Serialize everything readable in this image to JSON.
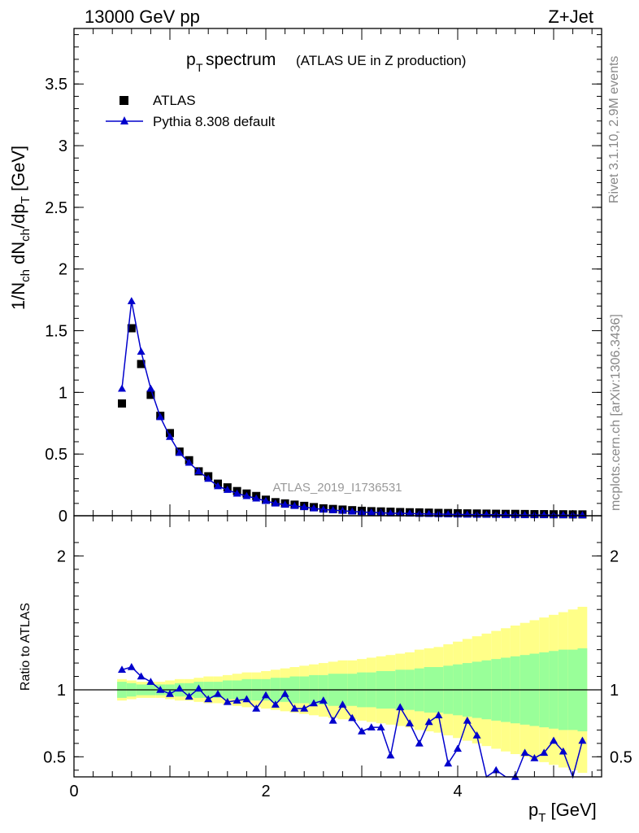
{
  "header": {
    "left": "13000 GeV pp",
    "right": "Z+Jet"
  },
  "title": {
    "main": "p",
    "main_sub": "T",
    "main_rest": " spectrum",
    "detail": "(ATLAS UE in Z production)"
  },
  "side_labels": {
    "rivet": "Rivet 3.1.10,  2.9M events",
    "mcplots": "mcplots.cern.ch [arXiv:1306.3436]"
  },
  "watermark": "ATLAS_2019_I1736531",
  "legend": {
    "data_label": "ATLAS",
    "mc_label": "Pythia 8.308 default"
  },
  "colors": {
    "data": "#000000",
    "mc": "#0000cc",
    "band_inner": "#99ff99",
    "band_outer": "#ffff88"
  },
  "chart_data": [
    {
      "type": "scatter",
      "panel": "main",
      "ylabel": "1/N_ch dN_ch/dp_T [GeV]",
      "ylim": [
        0,
        3.95
      ],
      "xlim": [
        0,
        5.5
      ],
      "yticks": [
        "0",
        "0.5",
        "1",
        "1.5",
        "2",
        "2.5",
        "3",
        "3.5"
      ],
      "yticks_values": [
        0,
        0.5,
        1,
        1.5,
        2,
        2.5,
        3,
        3.5
      ],
      "x": [
        0.5,
        0.6,
        0.7,
        0.8,
        0.9,
        1.0,
        1.1,
        1.2,
        1.3,
        1.4,
        1.5,
        1.6,
        1.7,
        1.8,
        1.9,
        2.0,
        2.1,
        2.2,
        2.3,
        2.4,
        2.5,
        2.6,
        2.7,
        2.8,
        2.9,
        3.0,
        3.1,
        3.2,
        3.3,
        3.4,
        3.5,
        3.6,
        3.7,
        3.8,
        3.9,
        4.0,
        4.1,
        4.2,
        4.3,
        4.4,
        4.5,
        4.6,
        4.7,
        4.8,
        4.9,
        5.0,
        5.1,
        5.2,
        5.3
      ],
      "series": [
        {
          "name": "ATLAS",
          "values": [
            0.91,
            1.52,
            1.23,
            0.98,
            0.81,
            0.67,
            0.52,
            0.45,
            0.36,
            0.32,
            0.26,
            0.23,
            0.2,
            0.18,
            0.16,
            0.13,
            0.11,
            0.1,
            0.09,
            0.08,
            0.07,
            0.06,
            0.055,
            0.05,
            0.045,
            0.04,
            0.037,
            0.035,
            0.033,
            0.03,
            0.028,
            0.027,
            0.025,
            0.023,
            0.022,
            0.02,
            0.019,
            0.018,
            0.017,
            0.016,
            0.015,
            0.015,
            0.014,
            0.013,
            0.013,
            0.012,
            0.012,
            0.011,
            0.011
          ]
        },
        {
          "name": "Pythia 8.308 default",
          "values": [
            1.03,
            1.74,
            1.33,
            1.03,
            0.8,
            0.64,
            0.51,
            0.43,
            0.36,
            0.3,
            0.24,
            0.21,
            0.18,
            0.16,
            0.14,
            0.12,
            0.1,
            0.09,
            0.08,
            0.07,
            0.06,
            0.05,
            0.045,
            0.04,
            0.035,
            0.03,
            0.027,
            0.025,
            0.02,
            0.02,
            0.018,
            0.016,
            0.015,
            0.013,
            0.012,
            0.011,
            0.01,
            0.009,
            0.009,
            0.008,
            0.007,
            0.007,
            0.006,
            0.006,
            0.006,
            0.005,
            0.005,
            0.005,
            0.005
          ]
        }
      ]
    },
    {
      "type": "line",
      "panel": "ratio",
      "xlabel": "p_T [GeV]",
      "ylabel": "Ratio to ATLAS",
      "ylim": [
        0.35,
        2.3
      ],
      "xlim": [
        0,
        5.5
      ],
      "xticks": [
        "0",
        "2",
        "4"
      ],
      "xticks_values": [
        0,
        2,
        4
      ],
      "yticks": [
        "0.5",
        "1",
        "2"
      ],
      "yticks_values": [
        0.5,
        1,
        2
      ],
      "x": [
        0.5,
        0.6,
        0.7,
        0.8,
        0.9,
        1.0,
        1.1,
        1.2,
        1.3,
        1.4,
        1.5,
        1.6,
        1.7,
        1.8,
        1.9,
        2.0,
        2.1,
        2.2,
        2.3,
        2.4,
        2.5,
        2.6,
        2.7,
        2.8,
        2.9,
        3.0,
        3.1,
        3.2,
        3.3,
        3.4,
        3.5,
        3.6,
        3.7,
        3.8,
        3.9,
        4.0,
        4.1,
        4.2,
        4.3,
        4.4,
        4.5,
        4.6,
        4.7,
        4.8,
        4.9,
        5.0,
        5.1,
        5.2,
        5.3
      ],
      "series": [
        {
          "name": "Pythia 8.308 default",
          "values": [
            1.15,
            1.17,
            1.1,
            1.06,
            1.0,
            0.97,
            1.01,
            0.95,
            1.01,
            0.93,
            0.97,
            0.91,
            0.92,
            0.93,
            0.86,
            0.96,
            0.89,
            0.97,
            0.86,
            0.86,
            0.9,
            0.92,
            0.77,
            0.89,
            0.79,
            0.69,
            0.72,
            0.72,
            0.51,
            0.87,
            0.75,
            0.6,
            0.76,
            0.81,
            0.45,
            0.56,
            0.77,
            0.66,
            0.31,
            0.4,
            0.3,
            0.35,
            0.53,
            0.49,
            0.53,
            0.62,
            0.54,
            0.28,
            0.62
          ]
        }
      ],
      "band_inner_halfwidth": [
        0.06,
        0.05,
        0.04,
        0.04,
        0.04,
        0.04,
        0.05,
        0.05,
        0.06,
        0.06,
        0.06,
        0.07,
        0.07,
        0.08,
        0.08,
        0.08,
        0.09,
        0.09,
        0.1,
        0.1,
        0.11,
        0.11,
        0.12,
        0.12,
        0.12,
        0.13,
        0.13,
        0.14,
        0.14,
        0.15,
        0.15,
        0.16,
        0.17,
        0.17,
        0.18,
        0.19,
        0.2,
        0.21,
        0.22,
        0.23,
        0.24,
        0.25,
        0.26,
        0.27,
        0.28,
        0.29,
        0.3,
        0.3,
        0.31
      ],
      "band_outer_halfwidth": [
        0.08,
        0.07,
        0.06,
        0.06,
        0.06,
        0.07,
        0.08,
        0.08,
        0.09,
        0.1,
        0.1,
        0.11,
        0.12,
        0.13,
        0.13,
        0.14,
        0.15,
        0.16,
        0.17,
        0.18,
        0.19,
        0.2,
        0.21,
        0.22,
        0.22,
        0.23,
        0.24,
        0.25,
        0.26,
        0.27,
        0.28,
        0.3,
        0.31,
        0.32,
        0.34,
        0.36,
        0.38,
        0.4,
        0.42,
        0.44,
        0.46,
        0.48,
        0.5,
        0.52,
        0.54,
        0.56,
        0.58,
        0.6,
        0.62
      ]
    }
  ]
}
